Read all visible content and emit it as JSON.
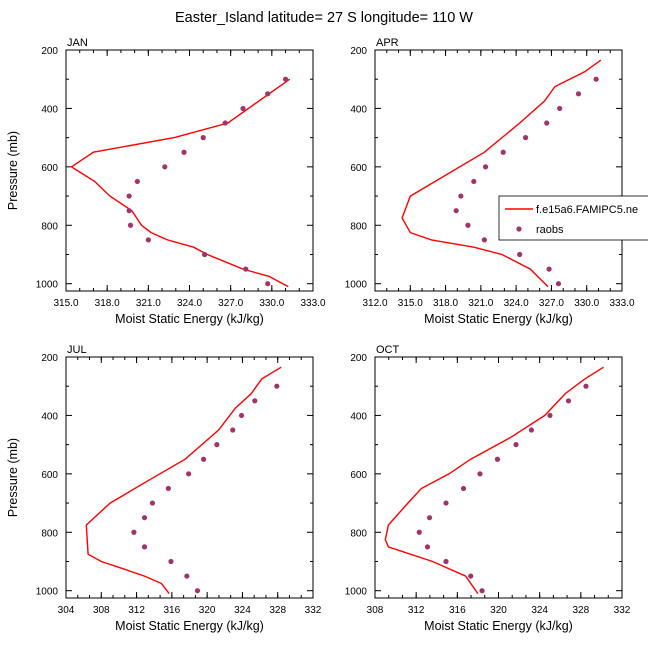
{
  "title": "Easter_Island  latitude= 27 S longitude= 110 W",
  "colors": {
    "model": "#ff0000",
    "obs": "#a0336b"
  },
  "legend": {
    "model_label": "f.e15a6.FAMIPC5.ne",
    "obs_label": "raobs"
  },
  "chart_data": [
    {
      "type": "line",
      "label": "JAN",
      "xlabel": "Moist Static Energy (kJ/kg)",
      "ylabel": "Pressure (mb)",
      "xlim": [
        315,
        333
      ],
      "ylim": [
        200,
        1025
      ],
      "xticks": [
        315,
        318,
        321,
        324,
        327,
        330,
        333
      ],
      "xtick_labels": [
        "315.0",
        "318.0",
        "321.0",
        "324.0",
        "327.0",
        "330.0",
        "333.0"
      ],
      "yticks": [
        200,
        400,
        600,
        800,
        1000
      ],
      "y_reversed": true,
      "series": [
        {
          "name": "f.e15a6.FAMIPC5.ne",
          "kind": "line",
          "x": [
            331.2,
            329.8,
            327.9,
            326.6,
            325.3,
            324.3,
            322.4,
            321.2,
            320.5,
            319.8,
            318.2,
            317.1,
            315.4,
            317.0,
            322.9,
            326.8,
            329.8,
            331.3
          ],
          "y": [
            1010,
            975,
            950,
            925,
            900,
            875,
            850,
            825,
            800,
            750,
            700,
            650,
            600,
            550,
            500,
            450,
            350,
            300
          ]
        }
      ]
    },
    {
      "type": "line",
      "label": "APR",
      "xlabel": "Moist Static Energy (kJ/kg)",
      "ylabel": "",
      "xlim": [
        312,
        333
      ],
      "ylim": [
        200,
        1025
      ],
      "xticks": [
        312,
        315,
        318,
        321,
        324,
        327,
        330,
        333
      ],
      "xtick_labels": [
        "312.0",
        "315.0",
        "318.0",
        "321.0",
        "324.0",
        "327.0",
        "330.0",
        "333.0"
      ],
      "yticks": [
        200,
        400,
        600,
        800,
        1000
      ],
      "y_reversed": true,
      "series": [
        {
          "name": "f.e15a6.FAMIPC5.ne",
          "kind": "line",
          "x": [
            326.7,
            325.2,
            322.8,
            320.4,
            316.8,
            315.0,
            314.3,
            315.0,
            321.3,
            324.3,
            326.4,
            327.3,
            329.8,
            331.2
          ],
          "y": [
            1010,
            950,
            900,
            875,
            850,
            825,
            775,
            700,
            550,
            450,
            375,
            325,
            275,
            235
          ]
        }
      ]
    },
    {
      "type": "line",
      "label": "JUL",
      "xlabel": "Moist Static Energy (kJ/kg)",
      "ylabel": "Pressure (mb)",
      "xlim": [
        304,
        332
      ],
      "ylim": [
        200,
        1025
      ],
      "xticks": [
        304,
        308,
        312,
        316,
        320,
        324,
        328,
        332
      ],
      "xtick_labels": [
        "304",
        "308",
        "312",
        "316",
        "320",
        "324",
        "328",
        "332"
      ],
      "yticks": [
        200,
        400,
        600,
        800,
        1000
      ],
      "y_reversed": true,
      "series": [
        {
          "name": "f.e15a6.FAMIPC5.ne",
          "kind": "line",
          "x": [
            315.7,
            314.8,
            312.9,
            310.5,
            308.0,
            306.5,
            306.3,
            309.0,
            313.2,
            317.5,
            321.3,
            323.2,
            325.0,
            326.2,
            328.4
          ],
          "y": [
            1010,
            975,
            950,
            925,
            900,
            875,
            775,
            700,
            625,
            550,
            450,
            375,
            325,
            275,
            235
          ]
        }
      ]
    },
    {
      "type": "line",
      "label": "OCT",
      "xlabel": "Moist Static Energy (kJ/kg)",
      "ylabel": "",
      "xlim": [
        308,
        332
      ],
      "ylim": [
        200,
        1025
      ],
      "xticks": [
        308,
        312,
        316,
        320,
        324,
        328,
        332
      ],
      "xtick_labels": [
        "308",
        "312",
        "316",
        "320",
        "324",
        "328",
        "332"
      ],
      "yticks": [
        200,
        400,
        600,
        800,
        1000
      ],
      "y_reversed": true,
      "series": [
        {
          "name": "f.e15a6.FAMIPC5.ne",
          "kind": "line",
          "x": [
            318.0,
            316.8,
            313.6,
            309.3,
            309.0,
            309.3,
            311.2,
            312.5,
            315.2,
            317.3,
            321.2,
            324.5,
            326.5,
            328.4,
            330.2
          ],
          "y": [
            1010,
            950,
            900,
            850,
            825,
            775,
            700,
            650,
            600,
            550,
            475,
            400,
            325,
            275,
            235
          ]
        }
      ]
    }
  ],
  "obs_points": [
    {
      "x": [
        329.7,
        328.1,
        325.1,
        321.0,
        319.7,
        319.6,
        319.6,
        320.2,
        322.2,
        323.6,
        325.0,
        326.6,
        327.9,
        329.7,
        331.0
      ],
      "y": [
        1000,
        950,
        900,
        850,
        800,
        750,
        700,
        650,
        600,
        550,
        500,
        450,
        400,
        350,
        300
      ]
    },
    {
      "x": [
        327.6,
        326.8,
        324.3,
        321.3,
        319.9,
        318.9,
        319.3,
        320.4,
        321.4,
        322.9,
        324.8,
        326.6,
        327.7,
        329.3,
        330.8
      ],
      "y": [
        1000,
        950,
        900,
        850,
        800,
        750,
        700,
        650,
        600,
        550,
        500,
        450,
        400,
        350,
        300
      ]
    },
    {
      "x": [
        318.9,
        317.7,
        315.9,
        312.9,
        311.7,
        312.9,
        313.8,
        315.6,
        317.9,
        319.6,
        321.1,
        322.9,
        323.9,
        325.4,
        327.9
      ],
      "y": [
        1000,
        950,
        900,
        850,
        800,
        750,
        700,
        650,
        600,
        550,
        500,
        450,
        400,
        350,
        300
      ]
    },
    {
      "x": [
        318.4,
        317.3,
        314.9,
        313.1,
        312.3,
        313.3,
        314.9,
        316.6,
        318.2,
        319.9,
        321.7,
        323.2,
        325.0,
        326.8,
        328.5
      ],
      "y": [
        1000,
        950,
        900,
        850,
        800,
        750,
        700,
        650,
        600,
        550,
        500,
        450,
        400,
        350,
        300
      ]
    }
  ]
}
